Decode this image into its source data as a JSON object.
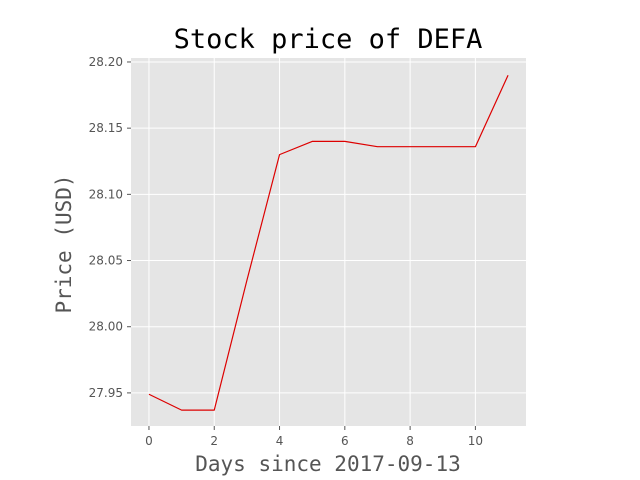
{
  "chart_data": {
    "type": "line",
    "title": "Stock price of DEFA",
    "xlabel": "Days since 2017-09-13",
    "ylabel": "Price (USD)",
    "xlim": [
      -0.55,
      11.55
    ],
    "ylim": [
      27.925,
      28.203
    ],
    "x_ticks": [
      0,
      2,
      4,
      6,
      8,
      10
    ],
    "y_ticks": [
      27.95,
      28.0,
      28.05,
      28.1,
      28.15,
      28.2
    ],
    "y_tick_labels": [
      "27.95",
      "28.00",
      "28.05",
      "28.10",
      "28.15",
      "28.20"
    ],
    "grid": true,
    "series": [
      {
        "color": "#dd0000",
        "x": [
          0,
          1,
          2,
          3,
          4,
          5,
          6,
          7,
          8,
          9,
          10,
          11
        ],
        "y": [
          27.949,
          27.937,
          27.937,
          28.035,
          28.13,
          28.14,
          28.14,
          28.136,
          28.136,
          28.136,
          28.136,
          28.19
        ]
      }
    ],
    "colors": {
      "plot_background": "#e5e5e5",
      "grid": "#ffffff",
      "tick": "#555555"
    }
  }
}
